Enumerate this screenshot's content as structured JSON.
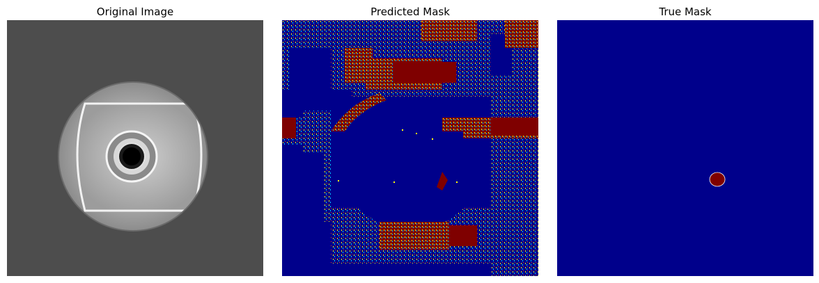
{
  "figure": {
    "panels": [
      {
        "title": "Original Image"
      },
      {
        "title": "Predicted Mask"
      },
      {
        "title": "True Mask"
      }
    ]
  },
  "colors": {
    "background_gray": "#4d4d4d",
    "mask_background": "#00008b",
    "mask_foreground": "#7f0000",
    "mask_edge_yellow": "#ffff00",
    "mask_edge_cyan": "#00c8ff"
  }
}
